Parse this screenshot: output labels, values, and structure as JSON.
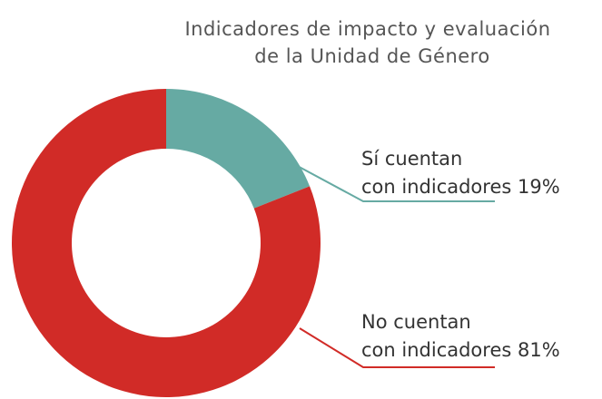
{
  "chart_data": {
    "type": "donut",
    "title": [
      "Indicadores de impacto y evaluación",
      "de la Unidad de Género"
    ],
    "categories": [
      [
        "Sí cuentan",
        "con indicadores"
      ],
      [
        "No cuentan",
        "con indicadores"
      ]
    ],
    "values": [
      19,
      81
    ],
    "value_labels": [
      "19%",
      "81%"
    ],
    "colors": [
      "#66aaa3",
      "#d12b27"
    ]
  }
}
